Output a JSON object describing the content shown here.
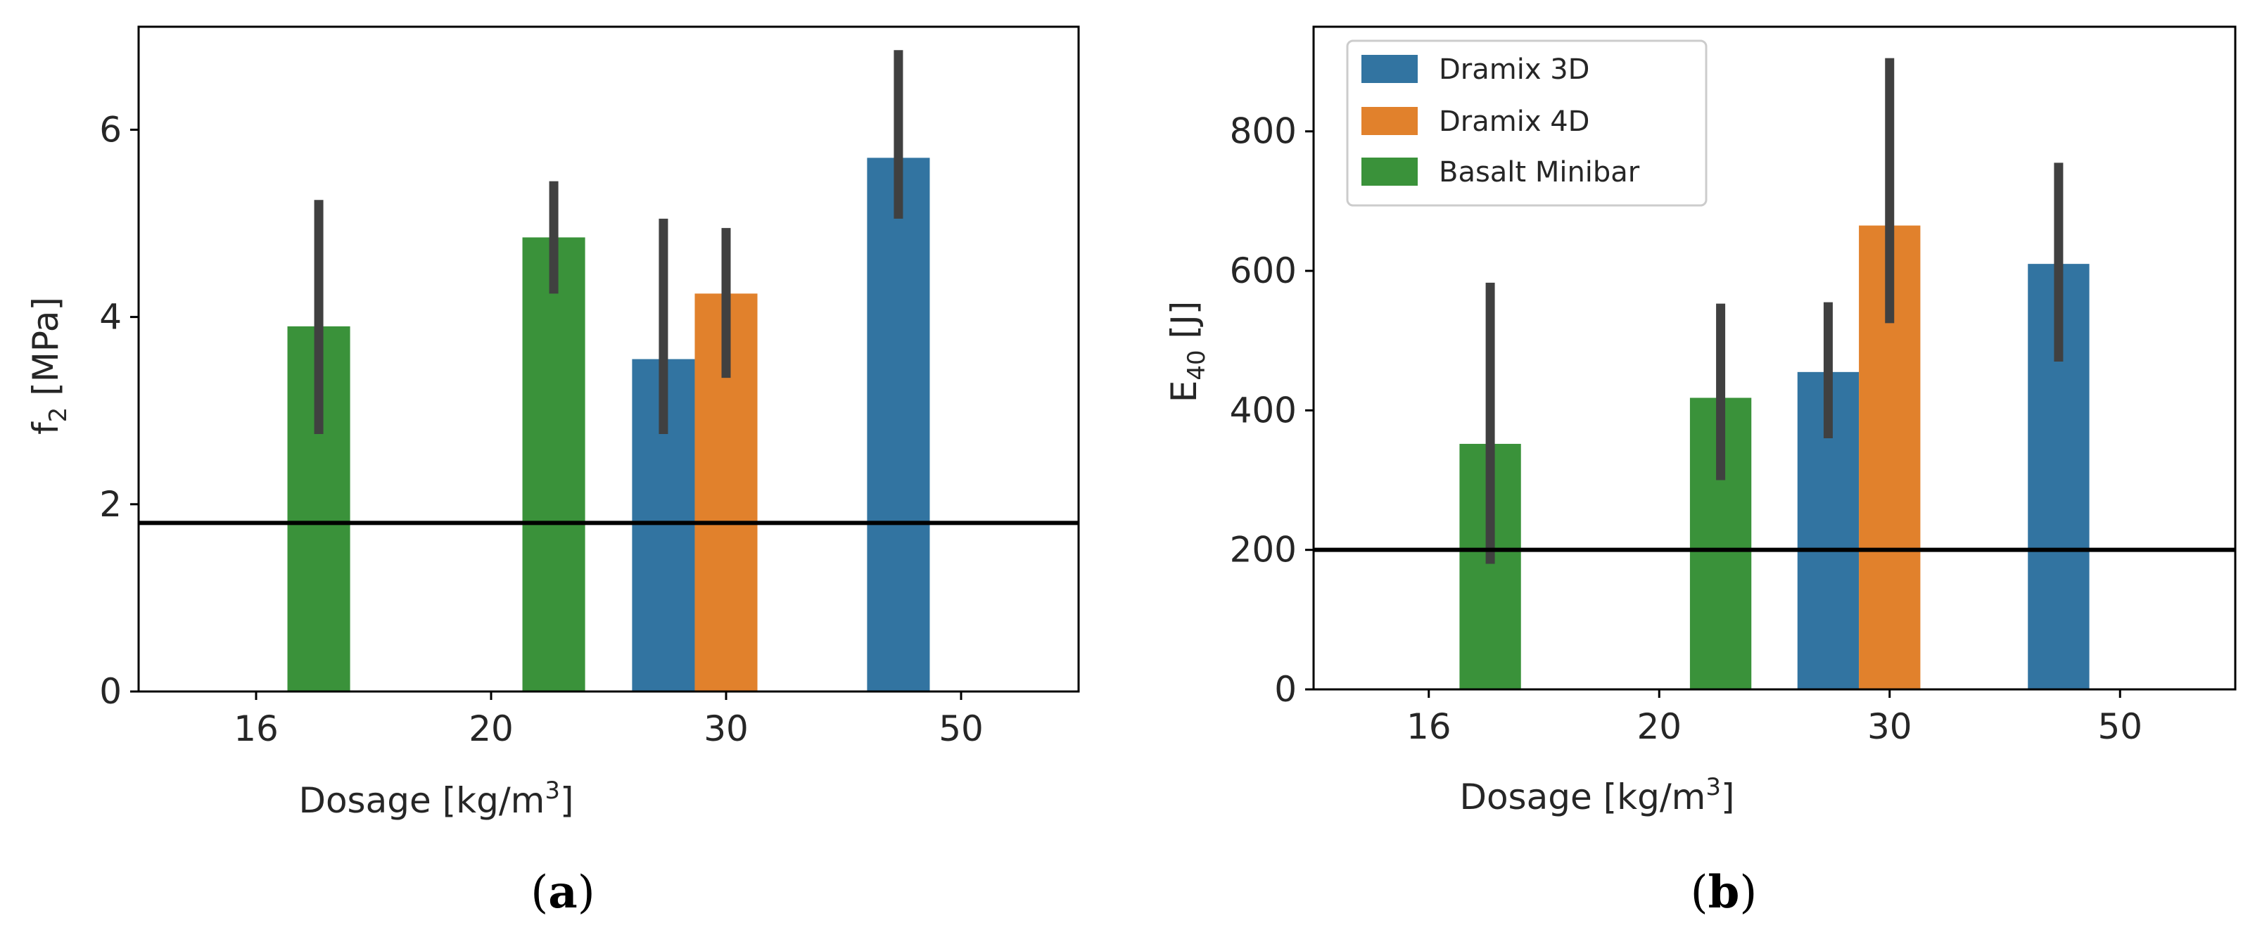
{
  "colors": {
    "dramix3d": "#3274a1",
    "dramix4d": "#e1812c",
    "basalt": "#3a923a",
    "errorbar": "#404040",
    "threshold": "#000000"
  },
  "panels": [
    {
      "panel_open": "(",
      "panel_letter": "a",
      "panel_close": ")"
    },
    {
      "panel_open": "(",
      "panel_letter": "b",
      "panel_close": ")"
    }
  ],
  "chart_data": [
    {
      "type": "bar",
      "xlabel_main": "Dosage [kg/m",
      "xlabel_sup": "3",
      "xlabel_end": "]",
      "ylabel_main": "f",
      "ylabel_sub": "2",
      "ylabel_end": " [MPa]",
      "categories": [
        "16",
        "20",
        "30",
        "50"
      ],
      "ylim": [
        0,
        7.1
      ],
      "yticks": [
        0,
        2,
        4,
        6
      ],
      "threshold": 1.8,
      "series": [
        {
          "name": "Dramix 3D",
          "values": [
            null,
            null,
            3.55,
            5.7
          ],
          "ci_low": [
            null,
            null,
            2.75,
            5.05
          ],
          "ci_high": [
            null,
            null,
            5.05,
            6.85
          ]
        },
        {
          "name": "Dramix 4D",
          "values": [
            null,
            null,
            4.25,
            null
          ],
          "ci_low": [
            null,
            null,
            3.35,
            null
          ],
          "ci_high": [
            null,
            null,
            4.95,
            null
          ]
        },
        {
          "name": "Basalt Minibar",
          "values": [
            3.9,
            4.85,
            null,
            null
          ],
          "ci_low": [
            2.75,
            4.25,
            null,
            null
          ],
          "ci_high": [
            5.25,
            5.45,
            null,
            null
          ]
        }
      ],
      "legend": false
    },
    {
      "type": "bar",
      "xlabel_main": "Dosage [kg/m",
      "xlabel_sup": "3",
      "xlabel_end": "]",
      "ylabel_main": "E",
      "ylabel_sub": "40",
      "ylabel_end": " [J]",
      "categories": [
        "16",
        "20",
        "30",
        "50"
      ],
      "ylim": [
        0,
        950
      ],
      "yticks": [
        0,
        200,
        400,
        600,
        800
      ],
      "threshold": 200,
      "series": [
        {
          "name": "Dramix 3D",
          "values": [
            null,
            null,
            455,
            610
          ],
          "ci_low": [
            null,
            null,
            360,
            470
          ],
          "ci_high": [
            null,
            null,
            555,
            755
          ]
        },
        {
          "name": "Dramix 4D",
          "values": [
            null,
            null,
            665,
            null
          ],
          "ci_low": [
            null,
            null,
            525,
            null
          ],
          "ci_high": [
            null,
            null,
            905,
            null
          ]
        },
        {
          "name": "Basalt Minibar",
          "values": [
            352,
            418,
            null,
            null
          ],
          "ci_low": [
            180,
            300,
            null,
            null
          ],
          "ci_high": [
            583,
            553,
            null,
            null
          ]
        }
      ],
      "legend": true,
      "legend_position": "top-left"
    }
  ]
}
